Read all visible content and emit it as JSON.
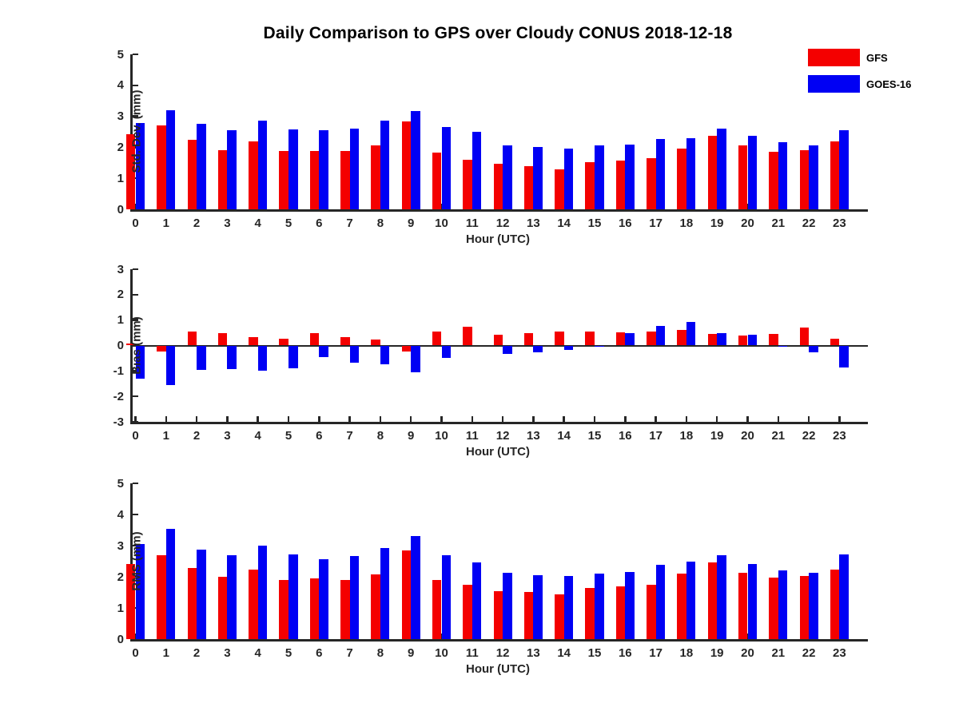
{
  "title": "Daily Comparison to GPS over Cloudy CONUS 2018-12-18",
  "legend": {
    "items": [
      {
        "label": "GFS",
        "color": "#f40000"
      },
      {
        "label": "GOES-16",
        "color": "#0000f4"
      }
    ]
  },
  "colors": {
    "gfs": "#f40000",
    "goes16": "#0000f4",
    "axis": "#262626",
    "background": "#ffffff"
  },
  "chart_data": [
    {
      "type": "bar",
      "title": "",
      "ylabel": "Std. Dev. (mm)",
      "xlabel": "Hour (UTC)",
      "ylim": [
        0,
        5
      ],
      "yticks": [
        0,
        1,
        2,
        3,
        4,
        5
      ],
      "grid": false,
      "legend_position": "top-right-outside",
      "categories": [
        "0",
        "1",
        "2",
        "3",
        "4",
        "5",
        "6",
        "7",
        "8",
        "9",
        "10",
        "11",
        "12",
        "13",
        "14",
        "15",
        "16",
        "17",
        "18",
        "19",
        "20",
        "21",
        "22",
        "23"
      ],
      "series": [
        {
          "name": "GFS",
          "color": "#f40000",
          "values": [
            2.43,
            2.7,
            2.25,
            1.92,
            2.18,
            1.88,
            1.88,
            1.88,
            2.07,
            2.83,
            1.84,
            1.61,
            1.47,
            1.4,
            1.3,
            1.52,
            1.57,
            1.64,
            1.97,
            2.38,
            2.07,
            1.86,
            1.9,
            2.2
          ]
        },
        {
          "name": "GOES-16",
          "color": "#0000f4",
          "values": [
            2.78,
            3.2,
            2.76,
            2.55,
            2.85,
            2.58,
            2.56,
            2.6,
            2.86,
            3.17,
            2.66,
            2.5,
            2.07,
            2.0,
            1.97,
            2.07,
            2.09,
            2.26,
            2.3,
            2.6,
            2.36,
            2.17,
            2.06,
            2.55
          ]
        }
      ]
    },
    {
      "type": "bar",
      "title": "",
      "ylabel": "Bias (mm)",
      "xlabel": "Hour (UTC)",
      "ylim": [
        -3,
        3
      ],
      "yticks": [
        -3,
        -2,
        -1,
        0,
        1,
        2,
        3
      ],
      "grid": false,
      "zero_line": true,
      "categories": [
        "0",
        "1",
        "2",
        "3",
        "4",
        "5",
        "6",
        "7",
        "8",
        "9",
        "10",
        "11",
        "12",
        "13",
        "14",
        "15",
        "16",
        "17",
        "18",
        "19",
        "20",
        "21",
        "22",
        "23"
      ],
      "series": [
        {
          "name": "GFS",
          "color": "#f40000",
          "values": [
            0.08,
            -0.25,
            0.55,
            0.48,
            0.32,
            0.28,
            0.49,
            0.34,
            0.22,
            -0.22,
            0.55,
            0.74,
            0.43,
            0.5,
            0.55,
            0.55,
            0.52,
            0.56,
            0.62,
            0.44,
            0.38,
            0.47,
            0.7,
            0.27
          ]
        },
        {
          "name": "GOES-16",
          "color": "#0000f4",
          "values": [
            -1.3,
            -1.55,
            -0.95,
            -0.94,
            -0.98,
            -0.9,
            -0.47,
            -0.66,
            -0.74,
            -1.05,
            -0.5,
            0.0,
            -0.33,
            -0.26,
            -0.16,
            -0.05,
            0.48,
            0.76,
            0.93,
            0.48,
            0.42,
            -0.05,
            -0.28,
            -0.87
          ]
        }
      ]
    },
    {
      "type": "bar",
      "title": "",
      "ylabel": "RMS (mm)",
      "xlabel": "Hour (UTC)",
      "ylim": [
        0,
        5
      ],
      "yticks": [
        0,
        1,
        2,
        3,
        4,
        5
      ],
      "grid": false,
      "categories": [
        "0",
        "1",
        "2",
        "3",
        "4",
        "5",
        "6",
        "7",
        "8",
        "9",
        "10",
        "11",
        "12",
        "13",
        "14",
        "15",
        "16",
        "17",
        "18",
        "19",
        "20",
        "21",
        "22",
        "23"
      ],
      "series": [
        {
          "name": "GFS",
          "color": "#f40000",
          "values": [
            2.41,
            2.7,
            2.28,
            1.99,
            2.22,
            1.9,
            1.95,
            1.9,
            2.07,
            2.84,
            1.9,
            1.75,
            1.55,
            1.51,
            1.44,
            1.64,
            1.69,
            1.74,
            2.09,
            2.45,
            2.14,
            1.97,
            2.03,
            2.24
          ]
        },
        {
          "name": "GOES-16",
          "color": "#0000f4",
          "values": [
            3.06,
            3.55,
            2.88,
            2.69,
            3.0,
            2.72,
            2.57,
            2.66,
            2.92,
            3.32,
            2.7,
            2.46,
            2.14,
            2.05,
            2.03,
            2.11,
            2.15,
            2.39,
            2.5,
            2.68,
            2.41,
            2.21,
            2.14,
            2.72
          ]
        }
      ]
    }
  ]
}
